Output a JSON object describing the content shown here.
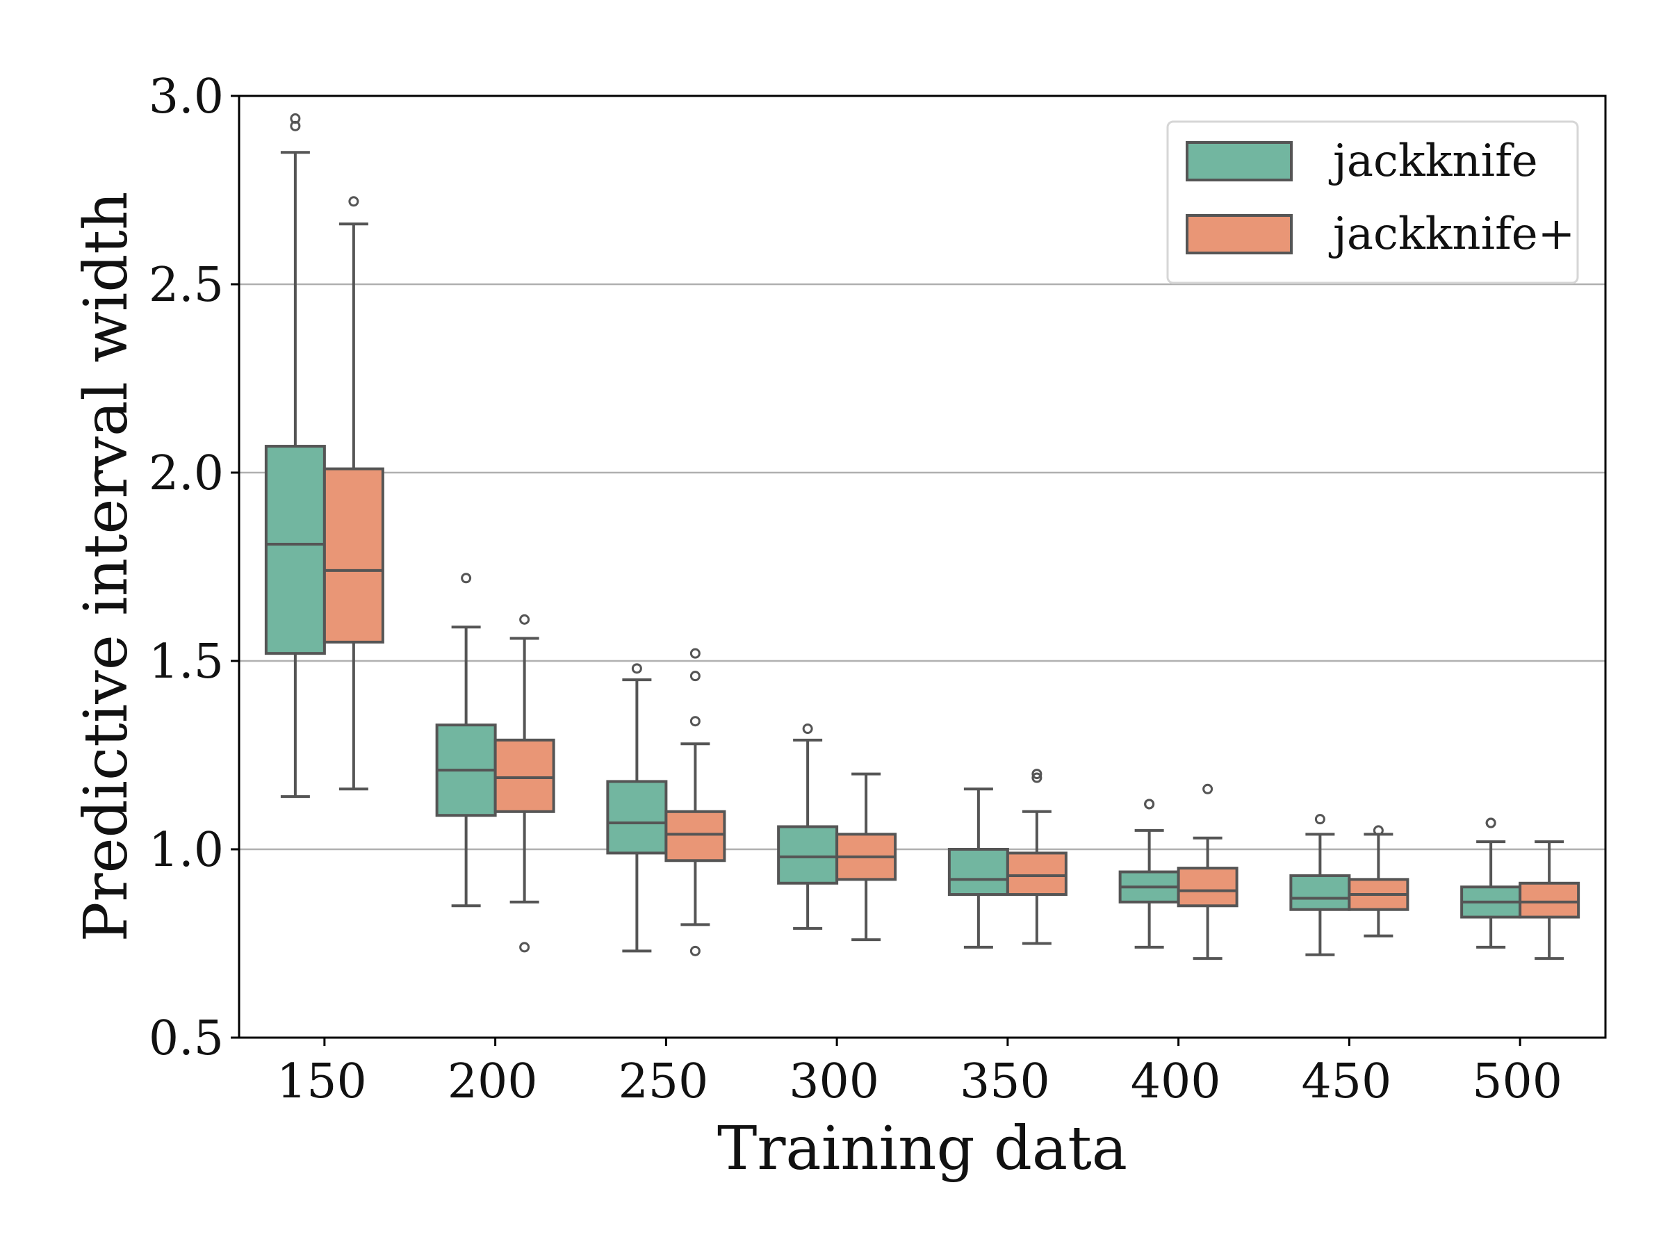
{
  "chart_data": {
    "type": "boxplot",
    "title": "",
    "xlabel": "Training data",
    "ylabel": "Predictive interval width",
    "ylim": [
      0.5,
      3.0
    ],
    "yticks": [
      0.5,
      1.0,
      1.5,
      2.0,
      2.5,
      3.0
    ],
    "ytick_labels": [
      "0.5",
      "1.0",
      "1.5",
      "2.0",
      "2.5",
      "3.0"
    ],
    "grid": "horizontal",
    "legend_position": "top-right",
    "categories": [
      "150",
      "200",
      "250",
      "300",
      "350",
      "400",
      "450",
      "500"
    ],
    "series": [
      {
        "name": "jackknife",
        "color": "#72b6a0",
        "boxes": [
          {
            "whislo": 1.14,
            "q1": 1.52,
            "med": 1.81,
            "q3": 2.07,
            "whishi": 2.85,
            "fliers": [
              2.92,
              2.94
            ]
          },
          {
            "whislo": 0.85,
            "q1": 1.09,
            "med": 1.21,
            "q3": 1.33,
            "whishi": 1.59,
            "fliers": [
              1.72
            ]
          },
          {
            "whislo": 0.73,
            "q1": 0.99,
            "med": 1.07,
            "q3": 1.18,
            "whishi": 1.45,
            "fliers": [
              1.48
            ]
          },
          {
            "whislo": 0.79,
            "q1": 0.91,
            "med": 0.98,
            "q3": 1.06,
            "whishi": 1.29,
            "fliers": [
              1.32
            ]
          },
          {
            "whislo": 0.74,
            "q1": 0.88,
            "med": 0.92,
            "q3": 1.0,
            "whishi": 1.16,
            "fliers": []
          },
          {
            "whislo": 0.74,
            "q1": 0.86,
            "med": 0.9,
            "q3": 0.94,
            "whishi": 1.05,
            "fliers": [
              1.12,
              1.12
            ]
          },
          {
            "whislo": 0.72,
            "q1": 0.84,
            "med": 0.87,
            "q3": 0.93,
            "whishi": 1.04,
            "fliers": [
              1.08
            ]
          },
          {
            "whislo": 0.74,
            "q1": 0.82,
            "med": 0.86,
            "q3": 0.9,
            "whishi": 1.02,
            "fliers": [
              1.07,
              1.07
            ]
          }
        ]
      },
      {
        "name": "jackknife+",
        "color": "#e99676",
        "boxes": [
          {
            "whislo": 1.16,
            "q1": 1.55,
            "med": 1.74,
            "q3": 2.01,
            "whishi": 2.66,
            "fliers": [
              2.72
            ]
          },
          {
            "whislo": 0.86,
            "q1": 1.1,
            "med": 1.19,
            "q3": 1.29,
            "whishi": 1.56,
            "fliers": [
              1.61,
              0.74
            ]
          },
          {
            "whislo": 0.8,
            "q1": 0.97,
            "med": 1.04,
            "q3": 1.1,
            "whishi": 1.28,
            "fliers": [
              1.34,
              1.46,
              1.52,
              0.73
            ]
          },
          {
            "whislo": 0.76,
            "q1": 0.92,
            "med": 0.98,
            "q3": 1.04,
            "whishi": 1.2,
            "fliers": []
          },
          {
            "whislo": 0.75,
            "q1": 0.88,
            "med": 0.93,
            "q3": 0.99,
            "whishi": 1.1,
            "fliers": [
              1.19,
              1.2
            ]
          },
          {
            "whislo": 0.71,
            "q1": 0.85,
            "med": 0.89,
            "q3": 0.95,
            "whishi": 1.03,
            "fliers": [
              1.16
            ]
          },
          {
            "whislo": 0.77,
            "q1": 0.84,
            "med": 0.88,
            "q3": 0.92,
            "whishi": 1.04,
            "fliers": [
              1.05
            ]
          },
          {
            "whislo": 0.71,
            "q1": 0.82,
            "med": 0.86,
            "q3": 0.91,
            "whishi": 1.02,
            "fliers": []
          }
        ]
      }
    ]
  }
}
